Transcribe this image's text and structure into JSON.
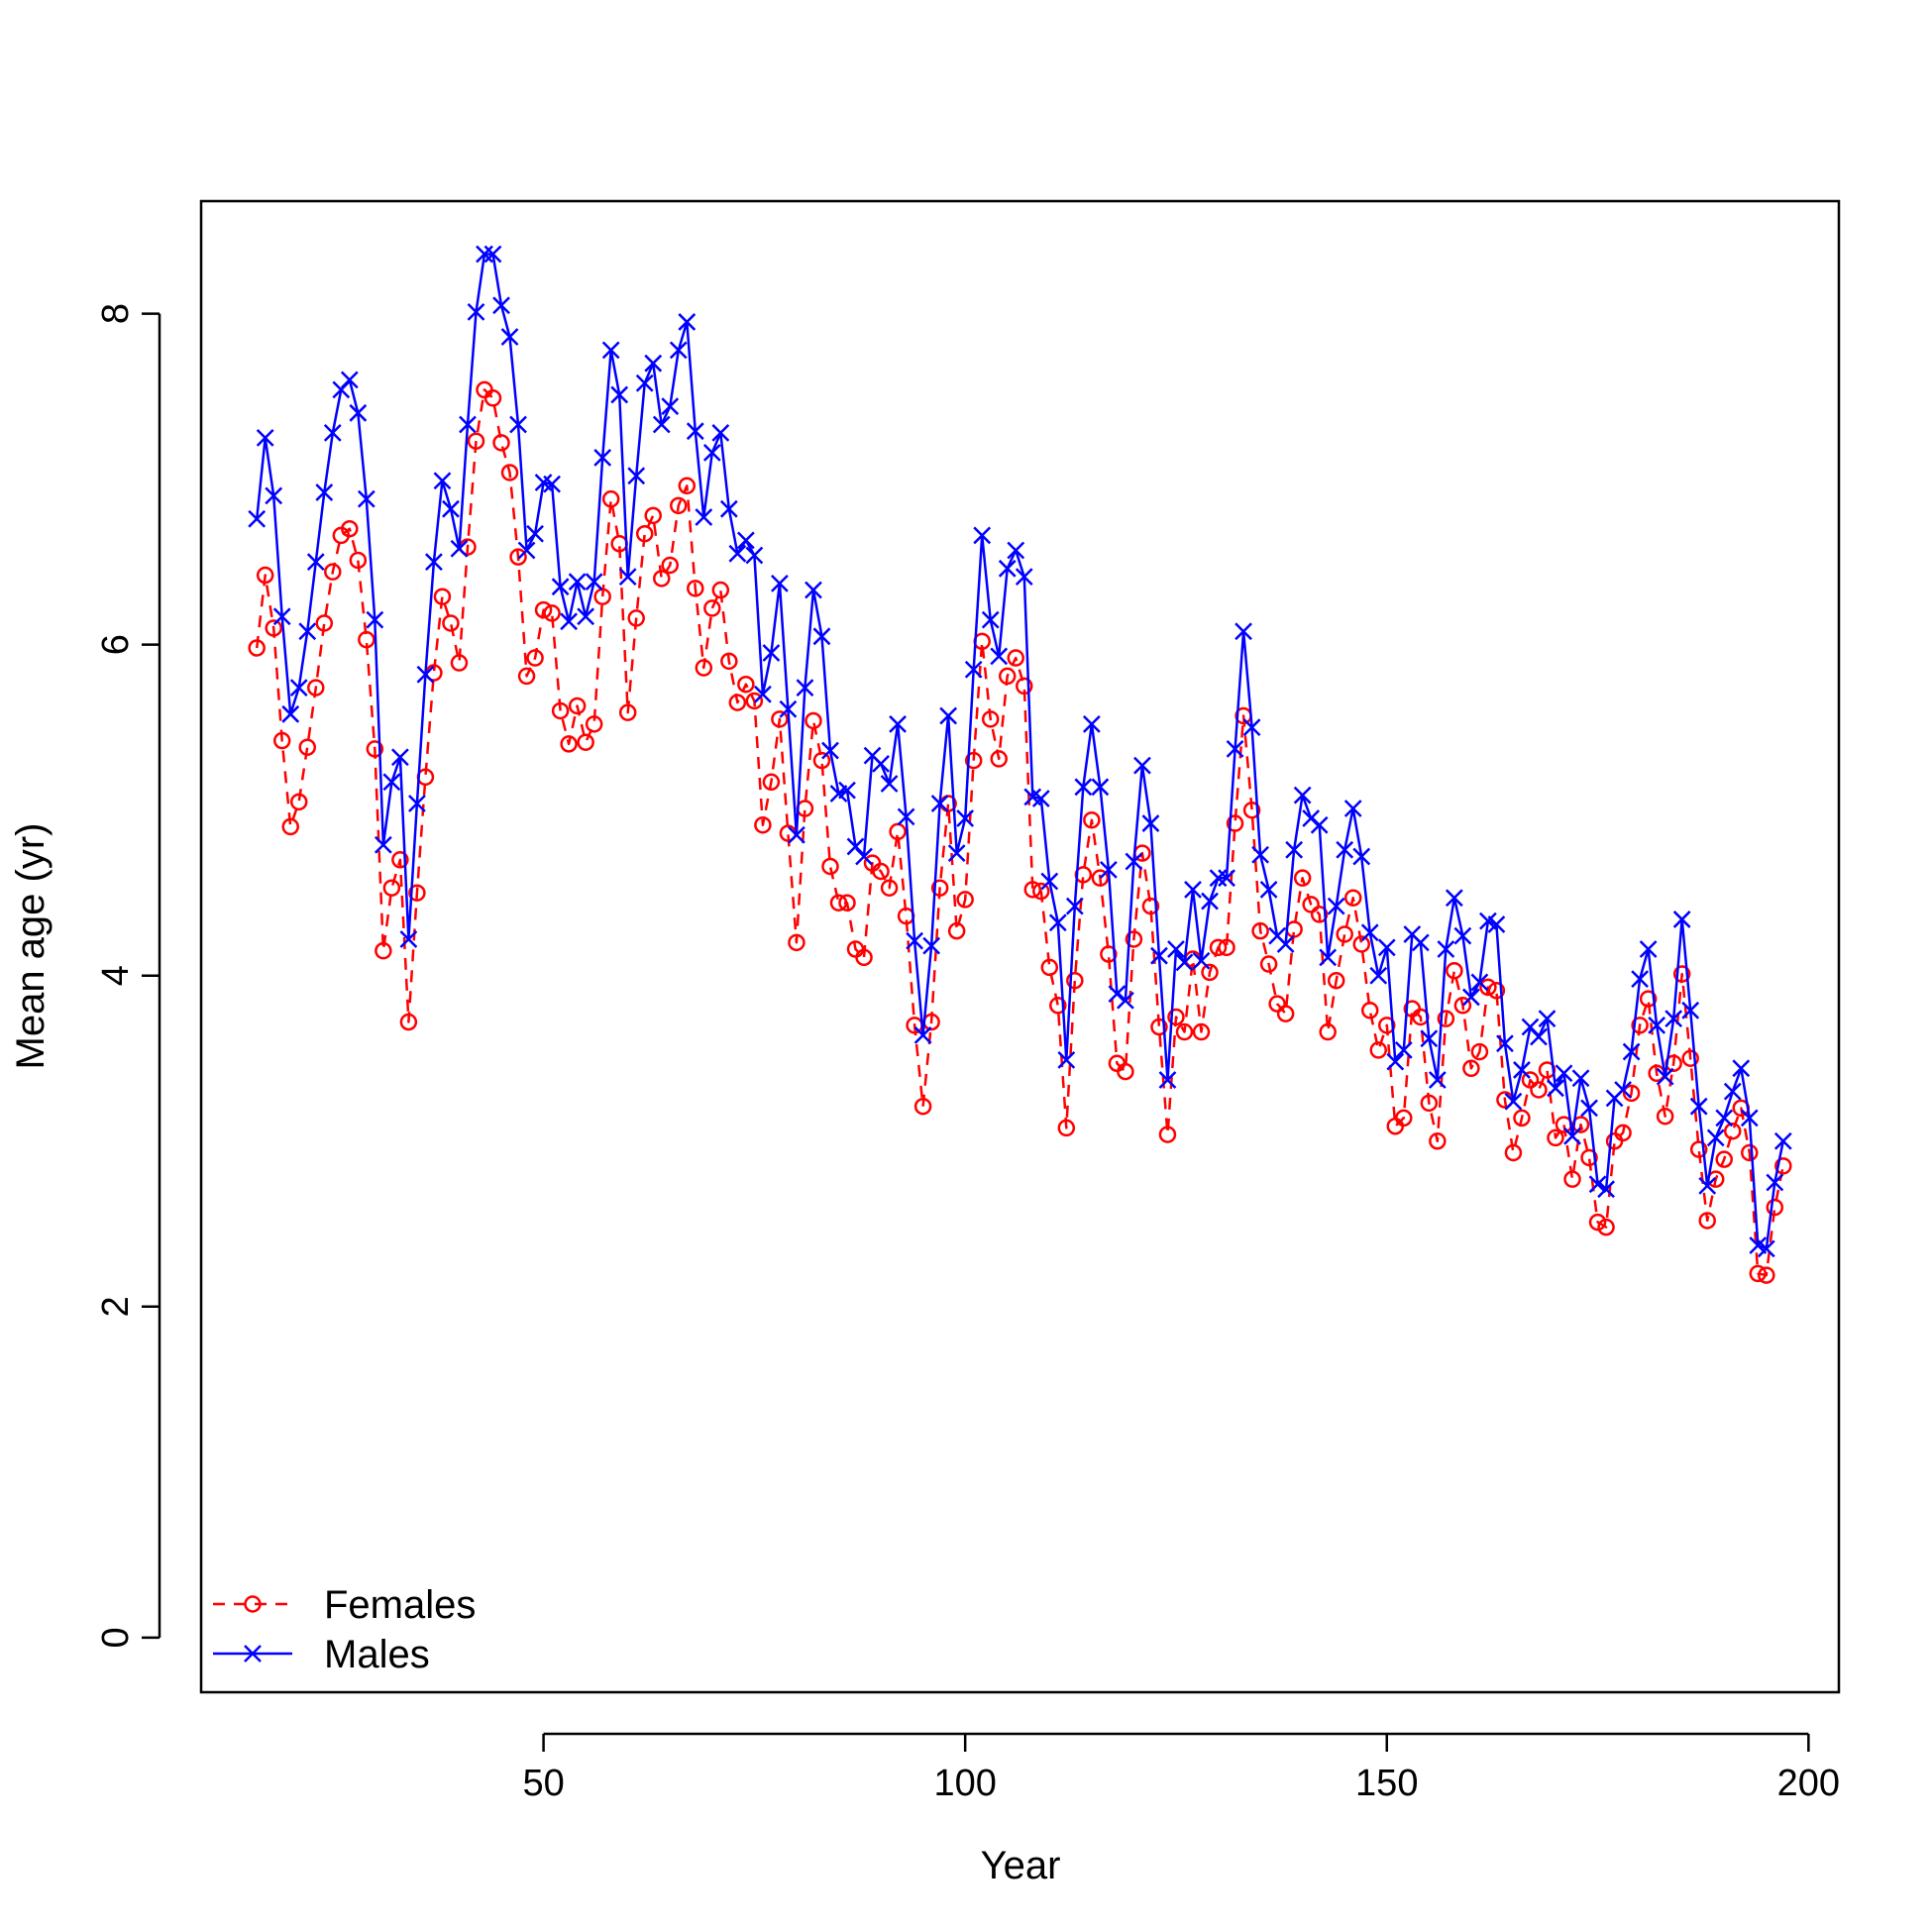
{
  "chart_data": {
    "type": "line",
    "xlabel": "Year",
    "ylabel": "Mean age (yr)",
    "xlim": [
      9.4,
      203.6
    ],
    "ylim": [
      -0.33,
      8.68
    ],
    "x_ticks": [
      50,
      100,
      150,
      200
    ],
    "y_ticks": [
      0,
      2,
      4,
      6,
      8
    ],
    "grid": false,
    "legend_position": "bottom-left",
    "x_start": 16,
    "series": [
      {
        "name": "Females",
        "color": "#ff0000",
        "line_style": "dashed",
        "marker": "circle",
        "values": [
          5.98,
          6.42,
          6.1,
          5.42,
          4.9,
          5.05,
          5.38,
          5.74,
          6.13,
          6.44,
          6.66,
          6.7,
          6.51,
          6.03,
          5.37,
          4.15,
          4.53,
          4.7,
          3.72,
          4.5,
          5.2,
          5.83,
          6.29,
          6.13,
          5.89,
          6.59,
          7.23,
          7.54,
          7.49,
          7.22,
          7.04,
          6.53,
          5.81,
          5.92,
          6.21,
          6.19,
          5.6,
          5.4,
          5.63,
          5.41,
          5.52,
          6.29,
          6.88,
          6.61,
          5.59,
          6.16,
          6.67,
          6.78,
          6.4,
          6.48,
          6.84,
          6.96,
          6.34,
          5.86,
          6.22,
          6.33,
          5.9,
          5.65,
          5.76,
          5.66,
          4.91,
          5.17,
          5.55,
          4.86,
          4.2,
          5.01,
          5.54,
          5.3,
          4.66,
          4.44,
          4.44,
          4.16,
          4.11,
          4.68,
          4.63,
          4.53,
          4.87,
          4.36,
          3.7,
          3.21,
          3.72,
          4.53,
          5.04,
          4.27,
          4.46,
          5.3,
          6.02,
          5.55,
          5.31,
          5.81,
          5.92,
          5.75,
          4.52,
          4.51,
          4.05,
          3.82,
          3.08,
          3.97,
          4.61,
          4.94,
          4.59,
          4.13,
          3.47,
          3.42,
          4.22,
          4.74,
          4.42,
          3.69,
          3.04,
          3.75,
          3.66,
          4.1,
          3.66,
          4.02,
          4.17,
          4.17,
          4.92,
          5.57,
          5.0,
          4.27,
          4.07,
          3.83,
          3.77,
          4.28,
          4.59,
          4.43,
          4.37,
          3.66,
          3.97,
          4.25,
          4.47,
          4.19,
          3.79,
          3.55,
          3.7,
          3.09,
          3.14,
          3.8,
          3.75,
          3.23,
          3.0,
          3.74,
          4.03,
          3.82,
          3.44,
          3.54,
          3.93,
          3.91,
          3.25,
          2.93,
          3.14,
          3.37,
          3.31,
          3.43,
          3.02,
          3.1,
          2.77,
          3.1,
          2.9,
          2.51,
          2.48,
          3.0,
          3.05,
          3.29,
          3.7,
          3.86,
          3.41,
          3.15,
          3.47,
          4.01,
          3.5,
          2.95,
          2.52,
          2.77,
          2.89,
          3.06,
          3.2,
          2.93,
          2.2,
          2.19,
          2.6,
          2.85
        ]
      },
      {
        "name": "Males",
        "color": "#0000ff",
        "line_style": "solid",
        "marker": "x",
        "values": [
          6.76,
          7.25,
          6.9,
          6.17,
          5.58,
          5.74,
          6.08,
          6.5,
          6.92,
          7.28,
          7.54,
          7.6,
          7.4,
          6.88,
          6.15,
          4.79,
          5.17,
          5.32,
          4.22,
          5.04,
          5.82,
          6.5,
          6.99,
          6.82,
          6.58,
          7.33,
          8.01,
          8.36,
          8.36,
          8.05,
          7.86,
          7.33,
          6.57,
          6.67,
          6.98,
          6.97,
          6.35,
          6.14,
          6.38,
          6.17,
          6.38,
          7.13,
          7.78,
          7.51,
          6.41,
          7.02,
          7.58,
          7.7,
          7.33,
          7.44,
          7.78,
          7.95,
          7.29,
          6.77,
          7.16,
          7.28,
          6.82,
          6.55,
          6.63,
          6.54,
          5.7,
          5.95,
          6.37,
          5.61,
          4.85,
          5.74,
          6.33,
          6.05,
          5.36,
          5.1,
          5.12,
          4.78,
          4.72,
          5.33,
          5.28,
          5.16,
          5.52,
          4.96,
          4.21,
          3.64,
          4.18,
          5.04,
          5.57,
          4.74,
          4.95,
          5.85,
          6.66,
          6.15,
          5.93,
          6.46,
          6.57,
          6.41,
          5.08,
          5.07,
          4.57,
          4.32,
          3.49,
          4.42,
          5.14,
          5.52,
          5.14,
          4.64,
          3.89,
          3.85,
          4.69,
          5.27,
          4.92,
          4.12,
          3.37,
          4.16,
          4.08,
          4.52,
          4.09,
          4.45,
          4.59,
          4.59,
          5.37,
          6.08,
          5.5,
          4.73,
          4.52,
          4.24,
          4.19,
          4.76,
          5.09,
          4.95,
          4.91,
          4.11,
          4.42,
          4.76,
          5.01,
          4.72,
          4.26,
          4.0,
          4.17,
          3.48,
          3.55,
          4.25,
          4.2,
          3.62,
          3.37,
          4.16,
          4.47,
          4.24,
          3.87,
          3.96,
          4.33,
          4.31,
          3.59,
          3.24,
          3.43,
          3.69,
          3.63,
          3.74,
          3.32,
          3.41,
          3.03,
          3.38,
          3.2,
          2.74,
          2.71,
          3.26,
          3.31,
          3.54,
          3.98,
          4.16,
          3.7,
          3.39,
          3.74,
          4.34,
          3.79,
          3.21,
          2.73,
          3.02,
          3.14,
          3.3,
          3.44,
          3.14,
          2.37,
          2.35,
          2.75,
          3.0
        ]
      }
    ]
  }
}
